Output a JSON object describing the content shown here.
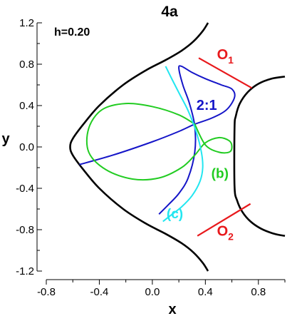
{
  "chart_data": {
    "type": "line",
    "title": "4a",
    "param_label": "h=0.20",
    "xlabel": "x",
    "ylabel": "y",
    "xlim": [
      -0.8,
      1.0
    ],
    "ylim": [
      -1.2,
      1.2
    ],
    "xticks": [
      "-0.8",
      "-0.4",
      "0.0",
      "0.4",
      "0.8"
    ],
    "xtick_values": [
      -0.8,
      -0.4,
      0.0,
      0.4,
      0.8
    ],
    "yticks": [
      "1.2",
      "0.8",
      "0.4",
      "0.0",
      "-0.4",
      "-0.8",
      "-1.2"
    ],
    "ytick_values": [
      1.2,
      0.8,
      0.4,
      0.0,
      -0.4,
      -0.8,
      -1.2
    ],
    "grid": false,
    "colors": {
      "boundary": "#000000",
      "lyapunov": "#e8191c",
      "orbit_21": "#1515c8",
      "orbit_b": "#22cc22",
      "orbit_c": "#22e6f0"
    },
    "series": [
      {
        "key": "boundary_left",
        "style": "boundary",
        "x": [
          0.42,
          0.38,
          0.31,
          0.22,
          0.1,
          -0.05,
          -0.22,
          -0.4,
          -0.52,
          -0.6,
          -0.62,
          -0.6,
          -0.52,
          -0.4,
          -0.22,
          -0.05,
          0.1,
          0.22,
          0.31,
          0.38,
          0.42
        ],
        "y": [
          1.2,
          1.12,
          1.02,
          0.93,
          0.84,
          0.74,
          0.6,
          0.4,
          0.22,
          0.08,
          0.0,
          -0.08,
          -0.22,
          -0.4,
          -0.6,
          -0.74,
          -0.84,
          -0.93,
          -1.02,
          -1.12,
          -1.2
        ]
      },
      {
        "key": "boundary_right",
        "style": "boundary",
        "x": [
          1.0,
          0.9,
          0.8,
          0.72,
          0.66,
          0.63,
          0.62,
          0.62,
          0.64,
          0.68,
          0.74,
          0.82,
          0.92,
          1.0
        ],
        "y": [
          0.68,
          0.66,
          0.61,
          0.53,
          0.42,
          0.3,
          0.18,
          -0.38,
          -0.52,
          -0.63,
          -0.72,
          -0.79,
          -0.84,
          -0.86
        ]
      },
      {
        "key": "O1",
        "style": "lyapunov",
        "x": [
          0.35,
          0.75
        ],
        "y": [
          0.86,
          0.57
        ]
      },
      {
        "key": "O2",
        "style": "lyapunov",
        "x": [
          0.34,
          0.74
        ],
        "y": [
          -0.86,
          -0.55
        ]
      },
      {
        "key": "orbit_21",
        "style": "orbit_21",
        "x": [
          -0.55,
          -0.3,
          0.0,
          0.2,
          0.32,
          0.45,
          0.56,
          0.62,
          0.6,
          0.52,
          0.4,
          0.3,
          0.22,
          0.2,
          0.23,
          0.28,
          0.32,
          0.32,
          0.27,
          0.2,
          0.12,
          0.05
        ],
        "y": [
          -0.17,
          -0.08,
          0.05,
          0.15,
          0.22,
          0.28,
          0.36,
          0.48,
          0.56,
          0.6,
          0.66,
          0.72,
          0.78,
          0.76,
          0.6,
          0.42,
          0.2,
          -0.05,
          -0.3,
          -0.45,
          -0.56,
          -0.65
        ]
      },
      {
        "key": "orbit_b",
        "style": "orbit_b",
        "x": [
          0.32,
          0.2,
          0.0,
          -0.2,
          -0.38,
          -0.48,
          -0.48,
          -0.35,
          -0.15,
          0.05,
          0.22,
          0.32,
          0.4,
          0.5,
          0.58,
          0.6,
          0.58,
          0.5,
          0.4,
          0.32
        ],
        "y": [
          0.22,
          0.31,
          0.39,
          0.42,
          0.36,
          0.18,
          -0.05,
          -0.22,
          -0.31,
          -0.3,
          -0.2,
          -0.08,
          0.04,
          0.09,
          0.06,
          0.0,
          -0.05,
          -0.05,
          0.02,
          0.22
        ]
      },
      {
        "key": "orbit_c",
        "style": "orbit_c",
        "x": [
          0.1,
          0.15,
          0.21,
          0.27,
          0.33,
          0.37,
          0.38,
          0.36,
          0.3,
          0.22,
          0.14,
          0.08
        ],
        "y": [
          0.78,
          0.65,
          0.5,
          0.35,
          0.15,
          -0.05,
          -0.2,
          -0.33,
          -0.47,
          -0.58,
          -0.66,
          -0.72
        ]
      }
    ],
    "annotations": [
      {
        "key": "ann_O1",
        "text": "O",
        "sub": "1",
        "style": "lyapunov",
        "x": 0.55,
        "y": 0.85,
        "size": 20
      },
      {
        "key": "ann_O2",
        "text": "O",
        "sub": "2",
        "style": "lyapunov",
        "x": 0.55,
        "y": -0.86,
        "size": 20
      },
      {
        "key": "ann_21",
        "text": "2:1",
        "sub": "",
        "style": "orbit_21",
        "x": 0.41,
        "y": 0.36,
        "size": 20
      },
      {
        "key": "ann_b",
        "text": "(b)",
        "sub": "",
        "style": "orbit_b",
        "x": 0.51,
        "y": -0.3,
        "size": 19
      },
      {
        "key": "ann_c",
        "text": "(c)",
        "sub": "",
        "style": "orbit_c",
        "x": 0.17,
        "y": -0.69,
        "size": 19
      }
    ]
  }
}
